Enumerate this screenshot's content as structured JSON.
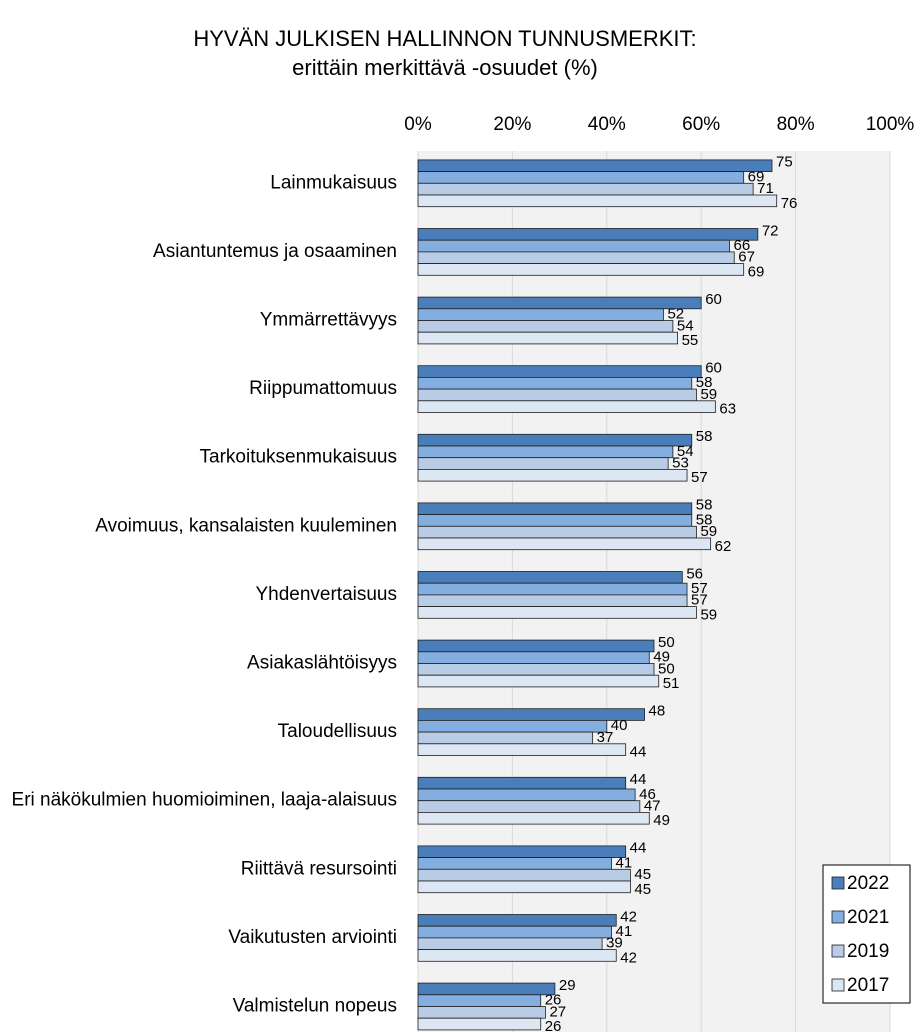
{
  "chart_data": {
    "type": "bar",
    "orientation": "horizontal",
    "title": "HYVÄN JULKISEN HALLINNON TUNNUSMERKIT:",
    "subtitle": "erittäin merkittävä -osuudet (%)",
    "categories": [
      "Lainmukaisuus",
      "Asiantuntemus ja osaaminen",
      "Ymmärrettävyys",
      "Riippumattomuus",
      "Tarkoituksenmukaisuus",
      "Avoimuus, kansalaisten kuuleminen",
      "Yhdenvertaisuus",
      "Asiakaslähtöisyys",
      "Taloudellisuus",
      "Eri näkökulmien huomioiminen, laaja-alaisuus",
      "Riittävä resursointi",
      "Vaikutusten arviointi",
      "Valmistelun nopeus"
    ],
    "series": [
      {
        "name": "2022",
        "color": "#4a7ebb",
        "values": [
          75,
          72,
          60,
          60,
          58,
          58,
          56,
          50,
          48,
          44,
          44,
          42,
          29
        ]
      },
      {
        "name": "2021",
        "color": "#84aee0",
        "values": [
          69,
          66,
          52,
          58,
          54,
          58,
          57,
          49,
          40,
          46,
          41,
          41,
          26
        ]
      },
      {
        "name": "2019",
        "color": "#b8cce6",
        "values": [
          71,
          67,
          54,
          59,
          53,
          59,
          57,
          50,
          37,
          47,
          45,
          39,
          27
        ]
      },
      {
        "name": "2017",
        "color": "#dde7f3",
        "values": [
          76,
          69,
          55,
          63,
          57,
          62,
          59,
          51,
          44,
          49,
          45,
          42,
          26
        ]
      }
    ],
    "xlim": [
      0,
      100
    ],
    "xticks": [
      {
        "value": 0,
        "label": "0%"
      },
      {
        "value": 20,
        "label": "20%"
      },
      {
        "value": 40,
        "label": "40%"
      },
      {
        "value": 60,
        "label": "60%"
      },
      {
        "value": 80,
        "label": "80%"
      },
      {
        "value": 100,
        "label": "100%"
      }
    ],
    "grid": true,
    "legend": "lower right"
  }
}
